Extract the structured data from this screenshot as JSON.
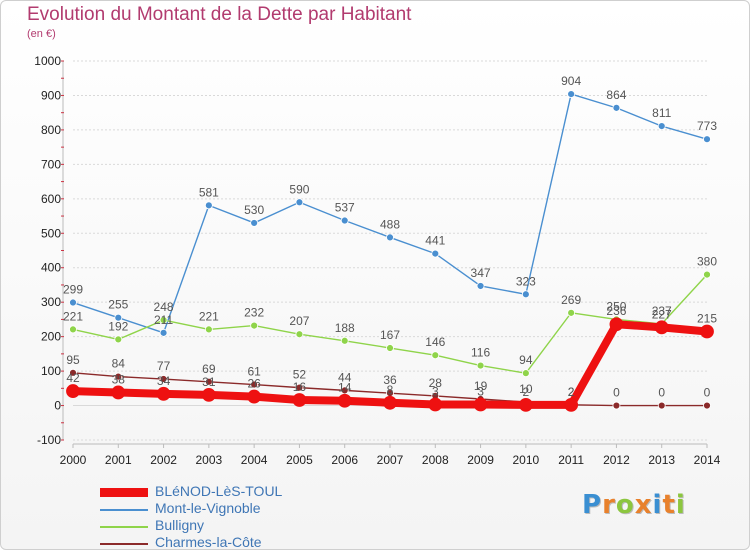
{
  "title": "Evolution du Montant de la Dette par Habitant",
  "unit": "(en €)",
  "logo": {
    "text": "Proxiti",
    "letter_colors": [
      "#3a8fd2",
      "#e8812c",
      "#8cc63f",
      "#e8812c",
      "#3a8fd2",
      "#e8812c",
      "#8cc63f"
    ]
  },
  "colors": {
    "title": "#b23b6f",
    "axis_text": "#222222",
    "grid": "#d9d9d9",
    "value_label": "#555555"
  },
  "chart_data": {
    "type": "line",
    "title": "Evolution du Montant de la Dette par Habitant",
    "ylabel": "(en €)",
    "xlabel": "",
    "x": [
      2000,
      2001,
      2002,
      2003,
      2004,
      2005,
      2006,
      2007,
      2008,
      2009,
      2010,
      2011,
      2012,
      2013,
      2014
    ],
    "ylim": [
      -100,
      1000
    ],
    "yticks": [
      -100,
      0,
      100,
      200,
      300,
      400,
      500,
      600,
      700,
      800,
      900,
      1000
    ],
    "grid": "horizontal",
    "legend_position": "bottom-left",
    "series": [
      {
        "name": "BLéNOD-LèS-TOUL",
        "color": "#ee1111",
        "style": "thick",
        "values": [
          42,
          38,
          34,
          31,
          26,
          16,
          14,
          8,
          3,
          3,
          2,
          2,
          236,
          227,
          215
        ],
        "labels": [
          "42",
          "38",
          "34",
          "31",
          "26",
          "16",
          "14",
          "8",
          "3",
          "3",
          "2",
          "2",
          "236",
          "227",
          "215"
        ]
      },
      {
        "name": "Mont-le-Vignoble",
        "color": "#4a8fd0",
        "style": "thin",
        "values": [
          299,
          255,
          211,
          581,
          530,
          590,
          537,
          488,
          441,
          347,
          323,
          904,
          864,
          811,
          773
        ],
        "labels": [
          "299",
          "255",
          "211",
          "581",
          "530",
          "590",
          "537",
          "488",
          "441",
          "347",
          "323",
          "904",
          "864",
          "811",
          "773"
        ]
      },
      {
        "name": "Bulligny",
        "color": "#8fd44a",
        "style": "thin",
        "values": [
          221,
          192,
          248,
          221,
          232,
          207,
          188,
          167,
          146,
          116,
          94,
          269,
          250,
          237,
          380
        ],
        "labels": [
          "221",
          "192",
          "248",
          "221",
          "232",
          "207",
          "188",
          "167",
          "146",
          "116",
          "94",
          "269",
          "250",
          "237",
          "380"
        ]
      },
      {
        "name": "Charmes-la-Côte",
        "color": "#8b2a2a",
        "style": "thin",
        "values": [
          95,
          84,
          77,
          69,
          61,
          52,
          44,
          36,
          28,
          19,
          10,
          2,
          0,
          0,
          0
        ],
        "labels": [
          "95",
          "84",
          "77",
          "69",
          "61",
          "52",
          "44",
          "36",
          "28",
          "19",
          "10",
          "2",
          "0",
          "0",
          "0"
        ]
      }
    ]
  }
}
